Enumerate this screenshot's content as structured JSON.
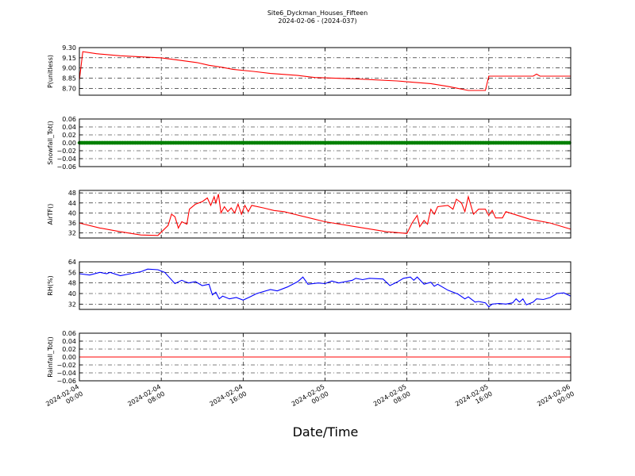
{
  "chart_data": {
    "type": "line",
    "title": "Site6_Dyckman_Houses_Fifteen",
    "subtitle": "2024-02-06 - (2024-037)",
    "xlabel": "Date/Time",
    "x_range": [
      "2024-02-04 00:00",
      "2024-02-06 00:00"
    ],
    "x_ticks": [
      {
        "t": "2024-02-04 00:00",
        "line1": "2024-02-04",
        "line2": "00:00"
      },
      {
        "t": "2024-02-04 08:00",
        "line1": "2024-02-04",
        "line2": "08:00"
      },
      {
        "t": "2024-02-04 16:00",
        "line1": "2024-02-04",
        "line2": "16:00"
      },
      {
        "t": "2024-02-05 00:00",
        "line1": "2024-02-05",
        "line2": "00:00"
      },
      {
        "t": "2024-02-05 08:00",
        "line1": "2024-02-05",
        "line2": "08:00"
      },
      {
        "t": "2024-02-05 16:00",
        "line1": "2024-02-05",
        "line2": "16:00"
      },
      {
        "t": "2024-02-06 00:00",
        "line1": "2024-02-06",
        "line2": "00:00"
      }
    ],
    "grid": true,
    "panels": [
      {
        "ylabel": "P(unitless)",
        "ylim": [
          8.6,
          9.3
        ],
        "yticks": [
          "9.30",
          "9.15",
          "9.00",
          "8.85",
          "8.70"
        ],
        "color": "#ff0000",
        "style": "line",
        "series": [
          {
            "x": "2024-02-04 00:00",
            "y": 8.82
          },
          {
            "x": "2024-02-04 00:20",
            "y": 9.24
          },
          {
            "x": "2024-02-04 01:40",
            "y": 9.21
          },
          {
            "x": "2024-02-04 04:00",
            "y": 9.18
          },
          {
            "x": "2024-02-04 08:00",
            "y": 9.15
          },
          {
            "x": "2024-02-04 10:00",
            "y": 9.11
          },
          {
            "x": "2024-02-04 11:30",
            "y": 9.08
          },
          {
            "x": "2024-02-04 12:40",
            "y": 9.04
          },
          {
            "x": "2024-02-04 14:00",
            "y": 9.01
          },
          {
            "x": "2024-02-04 15:00",
            "y": 8.98
          },
          {
            "x": "2024-02-04 17:00",
            "y": 8.95
          },
          {
            "x": "2024-02-04 18:40",
            "y": 8.92
          },
          {
            "x": "2024-02-04 21:20",
            "y": 8.89
          },
          {
            "x": "2024-02-04 23:00",
            "y": 8.86
          },
          {
            "x": "2024-02-05 03:00",
            "y": 8.84
          },
          {
            "x": "2024-02-05 07:00",
            "y": 8.81
          },
          {
            "x": "2024-02-05 10:20",
            "y": 8.77
          },
          {
            "x": "2024-02-05 12:00",
            "y": 8.73
          },
          {
            "x": "2024-02-05 13:00",
            "y": 8.7
          },
          {
            "x": "2024-02-05 14:00",
            "y": 8.67
          },
          {
            "x": "2024-02-05 15:40",
            "y": 8.67
          },
          {
            "x": "2024-02-05 16:00",
            "y": 8.88
          },
          {
            "x": "2024-02-05 20:20",
            "y": 8.88
          },
          {
            "x": "2024-02-05 20:40",
            "y": 8.91
          },
          {
            "x": "2024-02-05 21:00",
            "y": 8.88
          },
          {
            "x": "2024-02-06 00:00",
            "y": 8.88
          }
        ]
      },
      {
        "ylabel": "Snowfall_Tot()",
        "ylim": [
          -0.06,
          0.06
        ],
        "yticks": [
          "0.06",
          "0.04",
          "0.02",
          "0.00",
          "−0.02",
          "−0.04",
          "−0.06"
        ],
        "color": "#008000",
        "style": "markers",
        "series": [
          {
            "x": "2024-02-04 00:00",
            "y": 0.0
          },
          {
            "x": "2024-02-06 00:00",
            "y": 0.0
          }
        ]
      },
      {
        "ylabel": "AirTF()",
        "ylim": [
          30,
          49
        ],
        "yticks": [
          "48",
          "44",
          "40",
          "36",
          "32"
        ],
        "color": "#ff0000",
        "style": "line",
        "series": [
          {
            "x": "2024-02-04 00:00",
            "y": 36.0
          },
          {
            "x": "2024-02-04 02:00",
            "y": 34.0
          },
          {
            "x": "2024-02-04 04:00",
            "y": 32.5
          },
          {
            "x": "2024-02-04 06:00",
            "y": 31.2
          },
          {
            "x": "2024-02-04 07:40",
            "y": 31.0
          },
          {
            "x": "2024-02-04 08:40",
            "y": 35.0
          },
          {
            "x": "2024-02-04 09:00",
            "y": 39.5
          },
          {
            "x": "2024-02-04 09:20",
            "y": 38.5
          },
          {
            "x": "2024-02-04 09:40",
            "y": 34.0
          },
          {
            "x": "2024-02-04 10:00",
            "y": 36.5
          },
          {
            "x": "2024-02-04 10:30",
            "y": 35.5
          },
          {
            "x": "2024-02-04 10:45",
            "y": 41.5
          },
          {
            "x": "2024-02-04 11:20",
            "y": 43.5
          },
          {
            "x": "2024-02-04 12:00",
            "y": 44.5
          },
          {
            "x": "2024-02-04 12:30",
            "y": 46.0
          },
          {
            "x": "2024-02-04 12:50",
            "y": 43.0
          },
          {
            "x": "2024-02-04 13:10",
            "y": 46.5
          },
          {
            "x": "2024-02-04 13:20",
            "y": 44.0
          },
          {
            "x": "2024-02-04 13:35",
            "y": 47.5
          },
          {
            "x": "2024-02-04 13:50",
            "y": 40.0
          },
          {
            "x": "2024-02-04 14:10",
            "y": 42.5
          },
          {
            "x": "2024-02-04 14:30",
            "y": 40.5
          },
          {
            "x": "2024-02-04 14:50",
            "y": 42.0
          },
          {
            "x": "2024-02-04 15:10",
            "y": 40.0
          },
          {
            "x": "2024-02-04 15:30",
            "y": 43.5
          },
          {
            "x": "2024-02-04 15:50",
            "y": 39.5
          },
          {
            "x": "2024-02-04 16:10",
            "y": 43.0
          },
          {
            "x": "2024-02-04 16:30",
            "y": 40.5
          },
          {
            "x": "2024-02-04 16:50",
            "y": 43.0
          },
          {
            "x": "2024-02-04 18:00",
            "y": 42.0
          },
          {
            "x": "2024-02-04 19:00",
            "y": 41.0
          },
          {
            "x": "2024-02-04 20:00",
            "y": 40.5
          },
          {
            "x": "2024-02-04 22:00",
            "y": 38.5
          },
          {
            "x": "2024-02-05 00:00",
            "y": 36.5
          },
          {
            "x": "2024-02-05 03:00",
            "y": 34.5
          },
          {
            "x": "2024-02-05 06:00",
            "y": 32.5
          },
          {
            "x": "2024-02-05 08:00",
            "y": 31.8
          },
          {
            "x": "2024-02-05 08:30",
            "y": 36.0
          },
          {
            "x": "2024-02-05 09:00",
            "y": 39.0
          },
          {
            "x": "2024-02-05 09:15",
            "y": 34.5
          },
          {
            "x": "2024-02-05 09:40",
            "y": 37.0
          },
          {
            "x": "2024-02-05 10:00",
            "y": 35.5
          },
          {
            "x": "2024-02-05 10:20",
            "y": 41.5
          },
          {
            "x": "2024-02-05 10:40",
            "y": 39.5
          },
          {
            "x": "2024-02-05 11:00",
            "y": 42.5
          },
          {
            "x": "2024-02-05 12:00",
            "y": 43.0
          },
          {
            "x": "2024-02-05 12:30",
            "y": 41.5
          },
          {
            "x": "2024-02-05 12:50",
            "y": 45.5
          },
          {
            "x": "2024-02-05 13:20",
            "y": 44.0
          },
          {
            "x": "2024-02-05 13:40",
            "y": 40.5
          },
          {
            "x": "2024-02-05 14:00",
            "y": 46.5
          },
          {
            "x": "2024-02-05 14:30",
            "y": 39.5
          },
          {
            "x": "2024-02-05 15:00",
            "y": 41.5
          },
          {
            "x": "2024-02-05 15:40",
            "y": 41.5
          },
          {
            "x": "2024-02-05 16:00",
            "y": 39.0
          },
          {
            "x": "2024-02-05 16:20",
            "y": 41.0
          },
          {
            "x": "2024-02-05 16:40",
            "y": 38.0
          },
          {
            "x": "2024-02-05 17:20",
            "y": 38.0
          },
          {
            "x": "2024-02-05 17:40",
            "y": 40.5
          },
          {
            "x": "2024-02-05 20:00",
            "y": 37.5
          },
          {
            "x": "2024-02-05 22:00",
            "y": 36.0
          },
          {
            "x": "2024-02-06 00:00",
            "y": 33.5
          }
        ]
      },
      {
        "ylabel": "RH(%)",
        "ylim": [
          28,
          64
        ],
        "yticks": [
          "64",
          "56",
          "48",
          "40",
          "32"
        ],
        "color": "#0000ff",
        "style": "line",
        "series": [
          {
            "x": "2024-02-04 00:00",
            "y": 55.0
          },
          {
            "x": "2024-02-04 01:00",
            "y": 54.0
          },
          {
            "x": "2024-02-04 02:00",
            "y": 56.0
          },
          {
            "x": "2024-02-04 02:40",
            "y": 55.0
          },
          {
            "x": "2024-02-04 03:00",
            "y": 56.0
          },
          {
            "x": "2024-02-04 04:00",
            "y": 53.5
          },
          {
            "x": "2024-02-04 05:00",
            "y": 55.0
          },
          {
            "x": "2024-02-04 06:00",
            "y": 56.5
          },
          {
            "x": "2024-02-04 06:40",
            "y": 58.5
          },
          {
            "x": "2024-02-04 07:40",
            "y": 58.0
          },
          {
            "x": "2024-02-04 08:20",
            "y": 56.0
          },
          {
            "x": "2024-02-04 09:20",
            "y": 47.5
          },
          {
            "x": "2024-02-04 10:00",
            "y": 50.0
          },
          {
            "x": "2024-02-04 10:40",
            "y": 48.0
          },
          {
            "x": "2024-02-04 11:20",
            "y": 49.0
          },
          {
            "x": "2024-02-04 12:00",
            "y": 46.0
          },
          {
            "x": "2024-02-04 12:40",
            "y": 47.0
          },
          {
            "x": "2024-02-04 13:00",
            "y": 39.0
          },
          {
            "x": "2024-02-04 13:20",
            "y": 41.0
          },
          {
            "x": "2024-02-04 13:40",
            "y": 36.0
          },
          {
            "x": "2024-02-04 14:00",
            "y": 38.0
          },
          {
            "x": "2024-02-04 14:40",
            "y": 36.0
          },
          {
            "x": "2024-02-04 15:20",
            "y": 37.0
          },
          {
            "x": "2024-02-04 16:00",
            "y": 35.0
          },
          {
            "x": "2024-02-04 16:40",
            "y": 37.5
          },
          {
            "x": "2024-02-04 17:20",
            "y": 40.0
          },
          {
            "x": "2024-02-04 18:40",
            "y": 43.0
          },
          {
            "x": "2024-02-04 19:20",
            "y": 42.0
          },
          {
            "x": "2024-02-04 20:20",
            "y": 45.0
          },
          {
            "x": "2024-02-04 21:20",
            "y": 49.0
          },
          {
            "x": "2024-02-04 21:50",
            "y": 52.5
          },
          {
            "x": "2024-02-04 22:20",
            "y": 47.0
          },
          {
            "x": "2024-02-04 23:20",
            "y": 48.0
          },
          {
            "x": "2024-02-05 00:00",
            "y": 47.5
          },
          {
            "x": "2024-02-05 00:40",
            "y": 49.5
          },
          {
            "x": "2024-02-05 01:20",
            "y": 48.0
          },
          {
            "x": "2024-02-05 02:40",
            "y": 50.0
          },
          {
            "x": "2024-02-05 03:00",
            "y": 51.5
          },
          {
            "x": "2024-02-05 03:40",
            "y": 50.5
          },
          {
            "x": "2024-02-05 04:20",
            "y": 51.5
          },
          {
            "x": "2024-02-05 05:40",
            "y": 51.0
          },
          {
            "x": "2024-02-05 06:20",
            "y": 46.0
          },
          {
            "x": "2024-02-05 07:00",
            "y": 48.5
          },
          {
            "x": "2024-02-05 07:40",
            "y": 51.5
          },
          {
            "x": "2024-02-05 08:20",
            "y": 52.5
          },
          {
            "x": "2024-02-05 08:40",
            "y": 50.0
          },
          {
            "x": "2024-02-05 09:00",
            "y": 52.5
          },
          {
            "x": "2024-02-05 09:40",
            "y": 47.0
          },
          {
            "x": "2024-02-05 10:20",
            "y": 48.5
          },
          {
            "x": "2024-02-05 10:40",
            "y": 45.5
          },
          {
            "x": "2024-02-05 11:00",
            "y": 47.0
          },
          {
            "x": "2024-02-05 12:00",
            "y": 42.5
          },
          {
            "x": "2024-02-05 13:00",
            "y": 39.5
          },
          {
            "x": "2024-02-05 13:40",
            "y": 36.0
          },
          {
            "x": "2024-02-05 14:00",
            "y": 37.5
          },
          {
            "x": "2024-02-05 14:40",
            "y": 33.5
          },
          {
            "x": "2024-02-05 15:00",
            "y": 34.0
          },
          {
            "x": "2024-02-05 15:40",
            "y": 33.0
          },
          {
            "x": "2024-02-05 16:00",
            "y": 30.0
          },
          {
            "x": "2024-02-05 16:20",
            "y": 32.0
          },
          {
            "x": "2024-02-05 17:00",
            "y": 32.5
          },
          {
            "x": "2024-02-05 17:40",
            "y": 32.0
          },
          {
            "x": "2024-02-05 18:20",
            "y": 33.0
          },
          {
            "x": "2024-02-05 18:40",
            "y": 36.0
          },
          {
            "x": "2024-02-05 19:00",
            "y": 33.5
          },
          {
            "x": "2024-02-05 19:20",
            "y": 36.0
          },
          {
            "x": "2024-02-05 19:40",
            "y": 31.5
          },
          {
            "x": "2024-02-05 20:20",
            "y": 33.5
          },
          {
            "x": "2024-02-05 20:40",
            "y": 36.0
          },
          {
            "x": "2024-02-05 21:20",
            "y": 35.5
          },
          {
            "x": "2024-02-05 22:00",
            "y": 37.0
          },
          {
            "x": "2024-02-05 22:40",
            "y": 40.0
          },
          {
            "x": "2024-02-05 23:20",
            "y": 40.5
          },
          {
            "x": "2024-02-06 00:00",
            "y": 38.0
          }
        ]
      },
      {
        "ylabel": "Rainfall_Tot()",
        "ylim": [
          -0.06,
          0.06
        ],
        "yticks": [
          "0.06",
          "0.04",
          "0.02",
          "0.00",
          "−0.02",
          "−0.04",
          "−0.06"
        ],
        "color": "#ff0000",
        "style": "line",
        "series": [
          {
            "x": "2024-02-04 00:00",
            "y": 0.0
          },
          {
            "x": "2024-02-06 00:00",
            "y": 0.0
          }
        ]
      }
    ]
  }
}
